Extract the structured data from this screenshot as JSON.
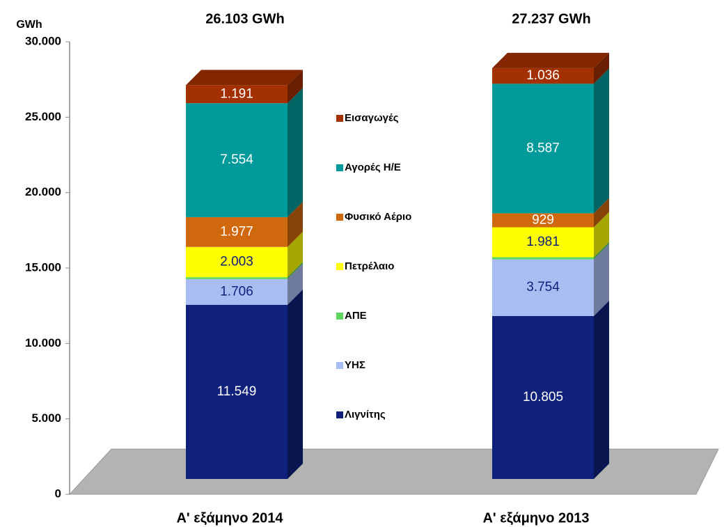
{
  "chart_data": {
    "type": "bar3d_stacked",
    "y_label": "GWh",
    "categories": [
      "Α' εξάμηνο 2014",
      "Α' εξάμηνο 2013"
    ],
    "annotations": [
      "26.103 GWh",
      "27.237 GWh"
    ],
    "ylim": [
      0,
      30000
    ],
    "yticks": [
      0,
      {
        "value": 5000,
        "label": "5.000"
      },
      {
        "value": 10000,
        "label": "10.000"
      },
      {
        "value": 15000,
        "label": "15.000"
      },
      {
        "value": 20000,
        "label": "20.000"
      },
      {
        "value": 25000,
        "label": "25.000"
      },
      {
        "value": 30000,
        "label": "30.000"
      }
    ],
    "series": [
      {
        "name": "Λιγνίτης",
        "color": "#0f217a",
        "values": [
          11549,
          10805
        ],
        "value_labels": [
          "11.549",
          "10.805"
        ]
      },
      {
        "name": "ΥΗΣ",
        "color": "#a9bdf2",
        "values": [
          1706,
          3754
        ],
        "value_labels": [
          "1.706",
          "3.754"
        ]
      },
      {
        "name": "ΑΠΕ",
        "color": "#5fd65f",
        "values": [
          123,
          145
        ],
        "value_labels": [
          "123",
          "145"
        ]
      },
      {
        "name": "Πετρέλαιο",
        "color": "#ffff00",
        "values": [
          2003,
          1981
        ],
        "value_labels": [
          "2.003",
          "1.981"
        ]
      },
      {
        "name": "Φυσικό Αέριο",
        "color": "#d0680e",
        "values": [
          1977,
          929
        ],
        "value_labels": [
          "1.977",
          "929"
        ]
      },
      {
        "name": "Αγορές Η/Ε",
        "color": "#009a9a",
        "values": [
          7554,
          8587
        ],
        "value_labels": [
          "7.554",
          "8.587"
        ]
      },
      {
        "name": "Εισαγωγές",
        "color": "#a33000",
        "values": [
          1191,
          1036
        ],
        "value_labels": [
          "1.191",
          "1.036"
        ]
      }
    ],
    "legend": "center"
  }
}
